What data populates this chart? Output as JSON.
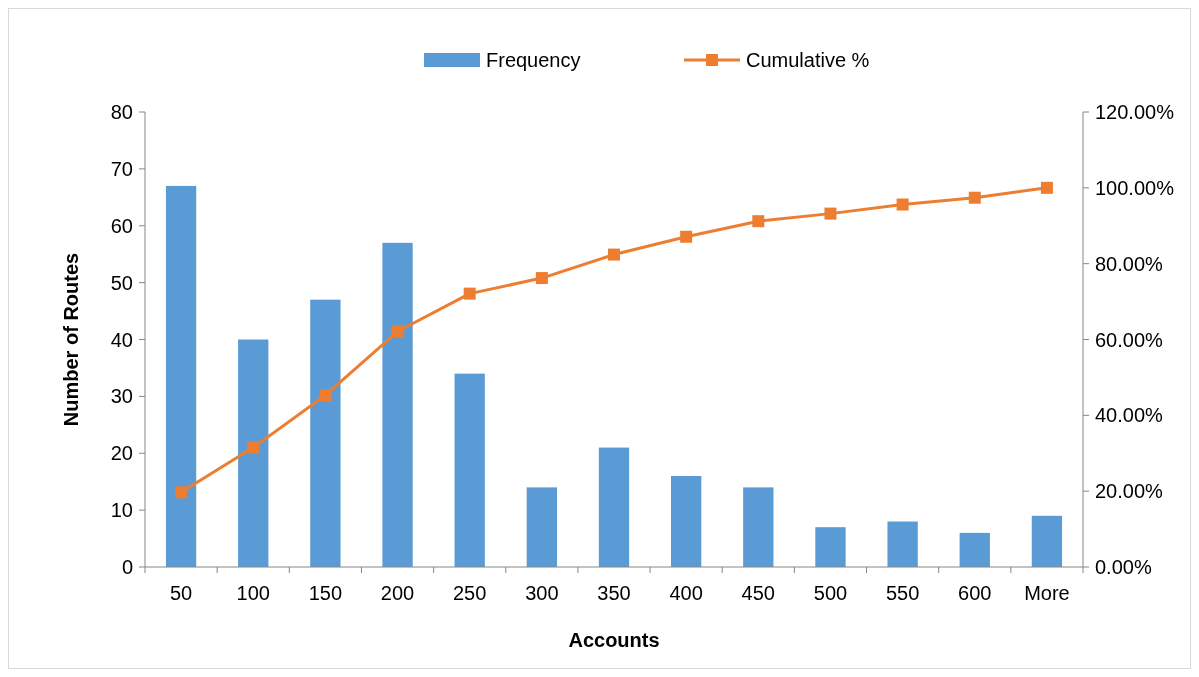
{
  "chart_data": {
    "type": "bar",
    "xlabel": "Accounts",
    "ylabel": "Number of Routes",
    "categories": [
      "50",
      "100",
      "150",
      "200",
      "250",
      "300",
      "350",
      "400",
      "450",
      "500",
      "550",
      "600",
      "More"
    ],
    "series": [
      {
        "name": "Frequency",
        "color": "#5b9bd5",
        "values": [
          67,
          40,
          47,
          57,
          34,
          14,
          21,
          16,
          14,
          7,
          8,
          6,
          9
        ]
      },
      {
        "name": "Cumulative %",
        "type": "line",
        "axis": "y2",
        "color": "#ed7d31",
        "marker": "square",
        "values": [
          19.7,
          31.5,
          45.3,
          62.1,
          72.1,
          76.2,
          82.4,
          87.1,
          91.2,
          93.2,
          95.6,
          97.4,
          100
        ]
      }
    ],
    "ylim": [
      0,
      80
    ],
    "yticks": [
      0,
      10,
      20,
      30,
      40,
      50,
      60,
      70,
      80
    ],
    "y2lim": [
      0,
      120
    ],
    "y2ticks": [
      {
        "value": 0,
        "label": "0.00%"
      },
      {
        "value": 20,
        "label": "20.00%"
      },
      {
        "value": 40,
        "label": "40.00%"
      },
      {
        "value": 60,
        "label": "60.00%"
      },
      {
        "value": 80,
        "label": "80.00%"
      },
      {
        "value": 100,
        "label": "100.00%"
      },
      {
        "value": 120,
        "label": "120.00%"
      }
    ],
    "legend": "top"
  }
}
